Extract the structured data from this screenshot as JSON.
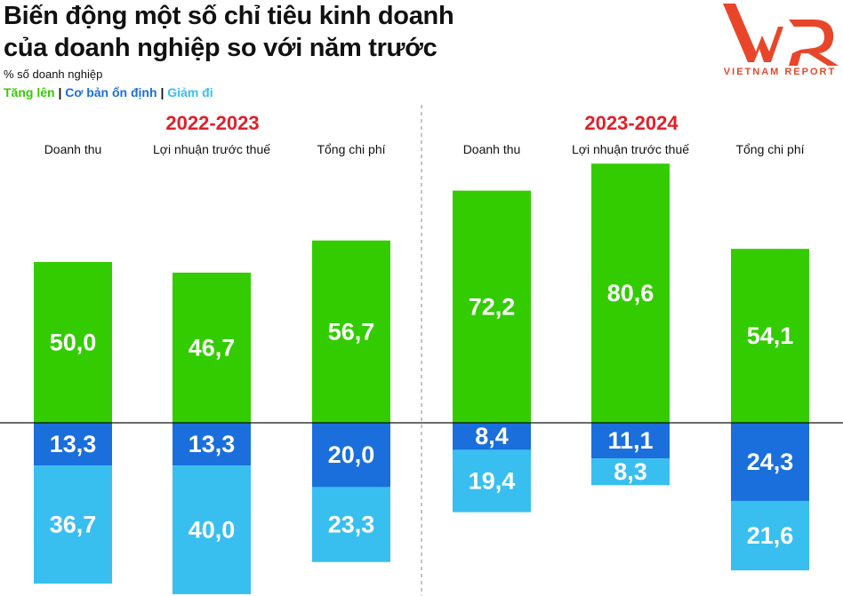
{
  "title_line1": "Biến động một số chỉ tiêu kinh doanh",
  "title_line2": "của doanh nghiệp so với năm trước",
  "subtitle": "% số doanh nghiệp",
  "legend": [
    {
      "label": "Tăng lên",
      "color": "#33cc00"
    },
    {
      "label": "Cơ bản ổn định",
      "color": "#1a6fdc"
    },
    {
      "label": "Giảm đi",
      "color": "#38bff0"
    }
  ],
  "legend_separator": "|",
  "logo": {
    "text": "VNR",
    "caption": "VIETNAM REPORT",
    "color": "#e8462a"
  },
  "chart_data": {
    "type": "bar",
    "stacked": "diverging",
    "groups": [
      {
        "label": "2022-2023",
        "categories": [
          "Doanh thu",
          "Lợi nhuận trước thuế",
          "Tổng chi phí"
        ]
      },
      {
        "label": "2023-2024",
        "categories": [
          "Doanh thu",
          "Lợi nhuận trước thuế",
          "Tổng chi phí"
        ]
      }
    ],
    "series": [
      {
        "name": "Tăng lên",
        "color": "#33cc00",
        "direction": "up",
        "values": [
          "50,0",
          "46,7",
          "56,7",
          "72,2",
          "80,6",
          "54,1"
        ]
      },
      {
        "name": "Cơ bản ổn định",
        "color": "#1a6fdc",
        "direction": "down",
        "values": [
          "13,3",
          "13,3",
          "20,0",
          "8,4",
          "11,1",
          "24,3"
        ]
      },
      {
        "name": "Giảm đi",
        "color": "#38bff0",
        "direction": "down",
        "values": [
          "36,7",
          "40,0",
          "23,3",
          "19,4",
          "8,3",
          "21,6"
        ]
      }
    ]
  }
}
